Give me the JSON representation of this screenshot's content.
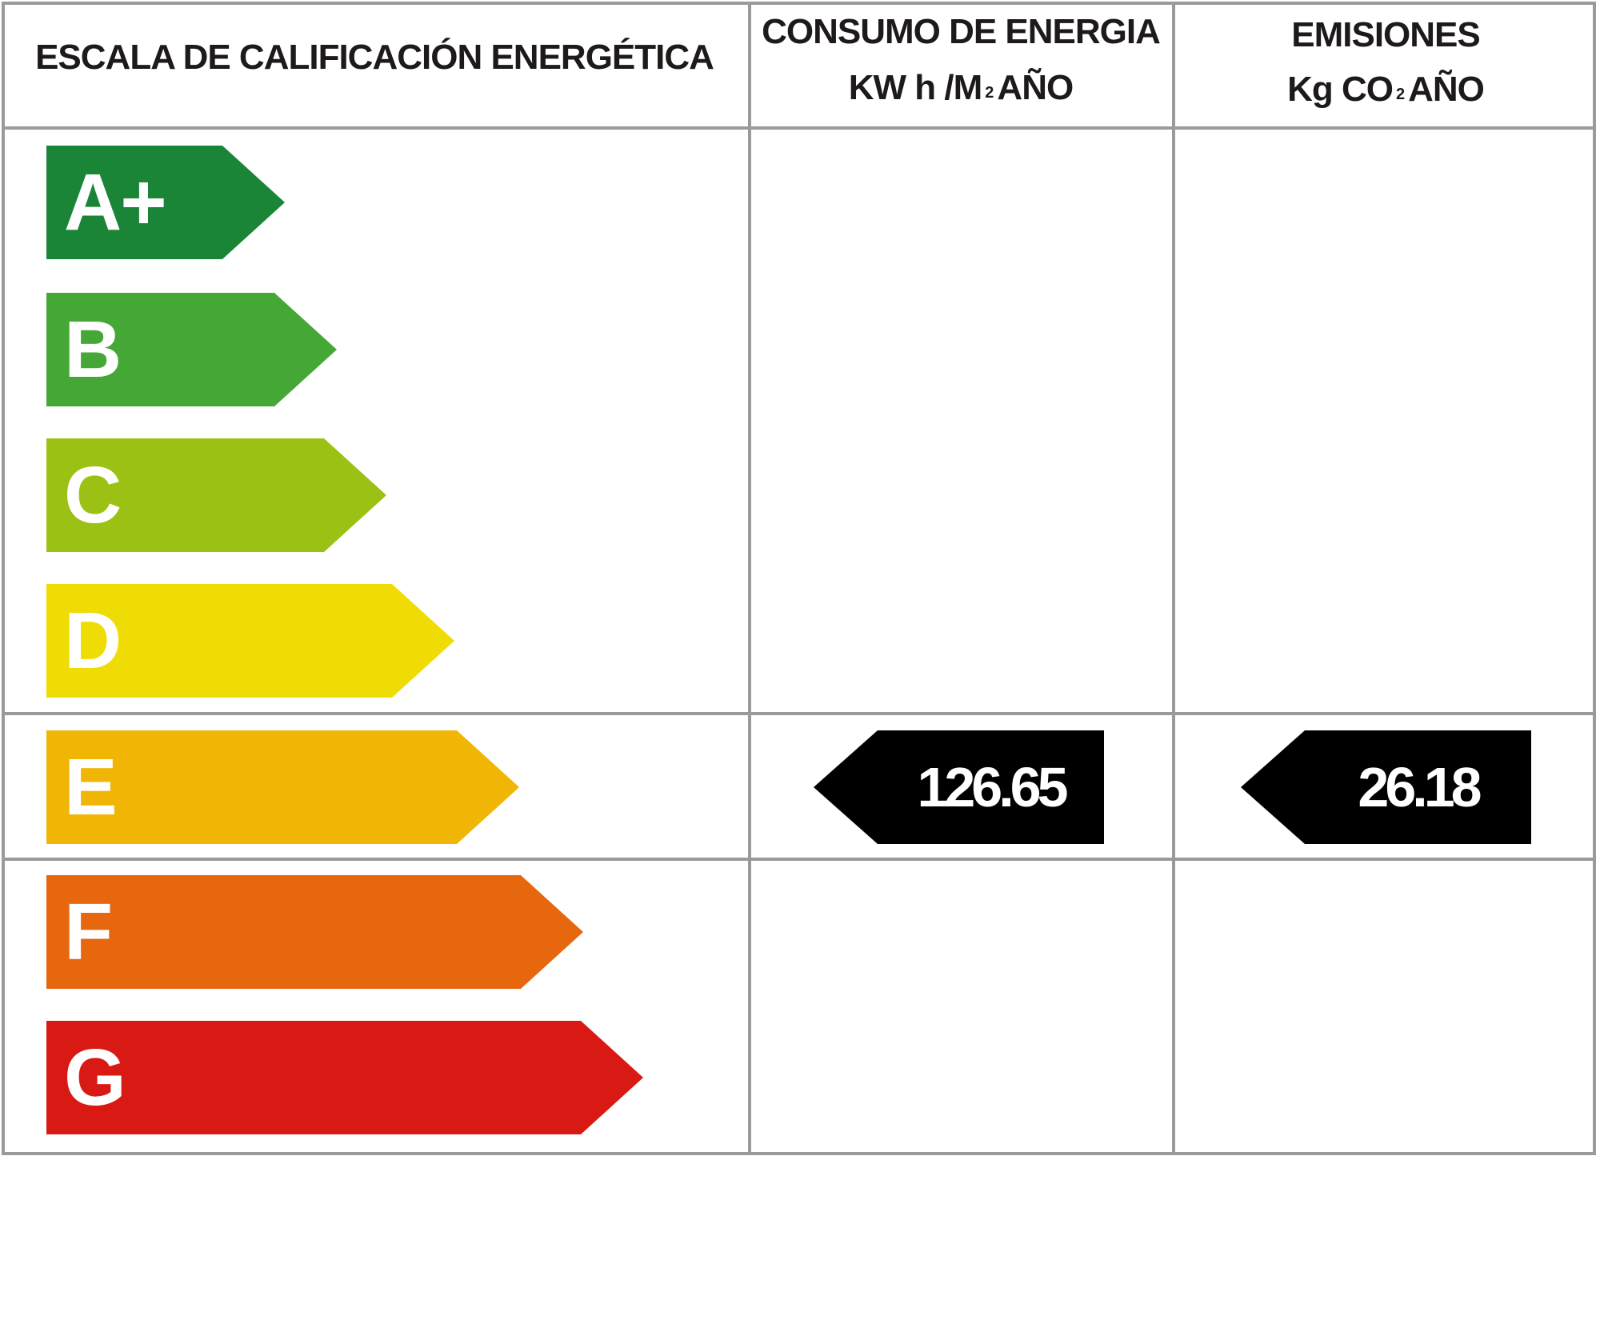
{
  "header": {
    "scale_title": "ESCALA DE CALIFICACIÓN ENERGÉTICA",
    "consumption": {
      "line1": "CONSUMO DE ENERGIA",
      "unit_pre": "KW h /M",
      "unit_sub": "2",
      "unit_post": "AÑO"
    },
    "emissions": {
      "line1": "EMISIONES",
      "unit_pre": "Kg CO",
      "unit_sub": "2",
      "unit_post": "AÑO"
    }
  },
  "ratings": [
    {
      "label": "A+",
      "color": "#1a8537"
    },
    {
      "label": "B",
      "color": "#45a735"
    },
    {
      "label": "C",
      "color": "#9cc115"
    },
    {
      "label": "D",
      "color": "#f0dc05"
    },
    {
      "label": "E",
      "color": "#f1b605"
    },
    {
      "label": "F",
      "color": "#e7670f"
    },
    {
      "label": "G",
      "color": "#d91a14"
    }
  ],
  "current_rating": "E",
  "values": {
    "consumption": "126.65",
    "emissions": "26.18"
  }
}
